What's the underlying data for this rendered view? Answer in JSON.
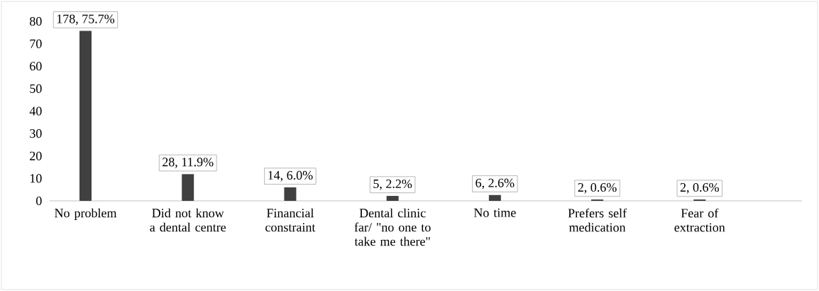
{
  "chart_data": {
    "type": "bar",
    "categories": [
      "No problem",
      "Did not know a dental centre",
      "Financial constraint",
      "Dental clinic far/ \"no one to take me there\"",
      "No time",
      "Prefers self medication",
      "Fear of extraction"
    ],
    "values": [
      75.7,
      11.9,
      6.0,
      2.2,
      2.6,
      0.6,
      0.6
    ],
    "value_labels": [
      "178, 75.7%",
      "28, 11.9%",
      "14, 6.0%",
      "5, 2.2%",
      "6, 2.6%",
      "2, 0.6%",
      "2, 0.6%"
    ],
    "color": "#404040",
    "ylim": [
      0,
      80
    ],
    "yticks": [
      0,
      10,
      20,
      30,
      40,
      50,
      60,
      70,
      80
    ]
  }
}
